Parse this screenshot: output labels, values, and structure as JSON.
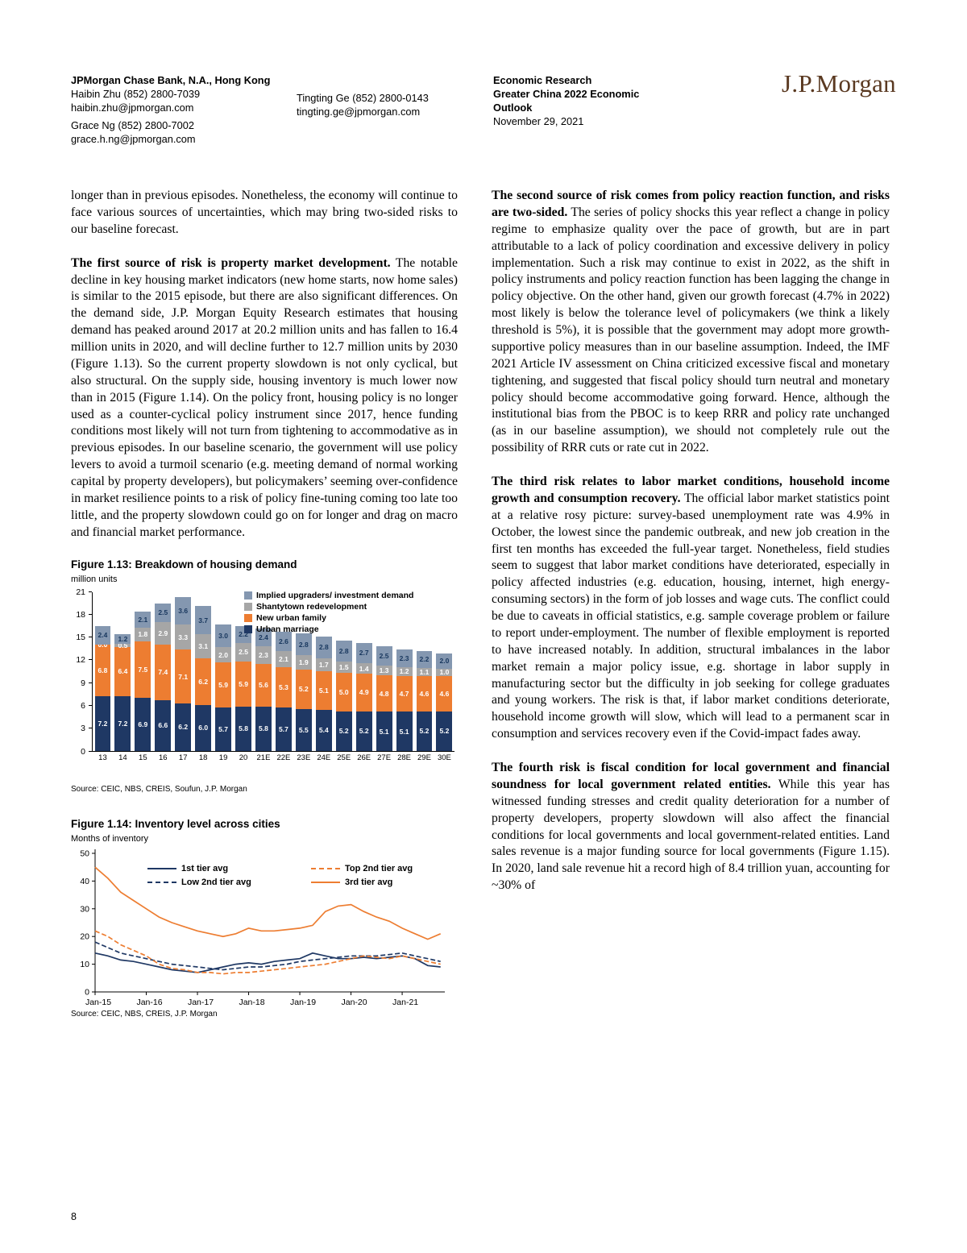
{
  "header": {
    "bank": "JPMorgan Chase Bank, N.A., Hong Kong",
    "contact1_name": "Haibin Zhu (852) 2800-7039",
    "contact1_email": "haibin.zhu@jpmorgan.com",
    "contact2_name": "Grace Ng (852) 2800-7002",
    "contact2_email": "grace.h.ng@jpmorgan.com",
    "contact3_name": "Tingting Ge (852) 2800-0143",
    "contact3_email": "tingting.ge@jpmorgan.com",
    "research_type": "Economic Research",
    "report_title": "Greater China 2022 Economic Outlook",
    "date": "November 29, 2021",
    "logo": "J.P.Morgan"
  },
  "left_column": {
    "para1": "longer than in previous episodes. Nonetheless, the economy will continue to face various sources of uncertainties, which may bring two-sided risks to our baseline forecast.",
    "para2_lead": "The first source of risk is property market development.",
    "para2_text": " The notable decline in key housing market indicators (new home starts, now home sales) is similar to the 2015 episode, but there are also significant differences. On the demand side, J.P. Morgan Equity Research estimates that housing demand has peaked around 2017 at 20.2 million units and has fallen to 16.4 million units in 2020, and will decline further to 12.7 million units by 2030 (Figure 1.13). So the current property slowdown is not only cyclical, but also structural. On the supply side, housing inventory is much lower now than in 2015 (Figure 1.14). On the policy front, housing policy is no longer used as a counter-cyclical policy instrument since 2017, hence funding conditions most likely will not turn from tightening to accommodative as in previous episodes. In our baseline scenario, the government will use policy levers to avoid a turmoil scenario (e.g. meeting demand of normal working capital by property developers), but policymakers’ seeming over-confidence in market resilience points to a risk of policy fine-tuning coming too late too little, and the property slowdown could go on for longer and drag on macro and financial market performance."
  },
  "right_column": {
    "p1_lead": "The second source of risk comes from policy reaction function, and risks are two-sided.",
    "p1_text": " The series of policy shocks this year reflect a change in policy regime to emphasize quality over the pace of growth, but are in part attributable to a lack of policy coordination and excessive delivery in policy implementation. Such a risk may continue to exist in 2022, as the shift in policy instruments and policy reaction function has been lagging the change in policy objective. On the other hand, given our growth forecast (4.7% in 2022) most likely is below the tolerance level of policymakers (we think a likely threshold is 5%), it is possible that the government may adopt more growth-supportive policy measures than in our baseline assumption. Indeed, the IMF 2021 Article IV assessment on China criticized excessive fiscal and monetary tightening, and suggested that fiscal policy should turn neutral and monetary policy should become accommodative going forward. Hence, although the institutional bias from the PBOC is to keep RRR and policy rate unchanged (as in our baseline assumption), we should not completely rule out the possibility of RRR cuts or rate cut in 2022.",
    "p2_lead": "The third risk relates to labor market conditions, household income growth and consumption recovery.",
    "p2_text": " The official labor market statistics point at a relative rosy picture: survey-based unemployment rate was 4.9% in October, the lowest since the pandemic outbreak, and new job creation in the first ten months has exceeded the full-year target. Nonetheless, field studies seem to suggest that labor market conditions have deteriorated, especially in policy affected industries (e.g. education, housing, internet, high energy-consuming sectors) in the form of job losses and wage cuts. The conflict could be due to caveats in official statistics, e.g. sample coverage problem or failure to report under-employment. The number of flexible employment is reported to have increased notably. In addition, structural imbalances in the labor market remain a major policy issue, e.g. shortage in labor supply in manufacturing sector but the difficulty in job seeking for college graduates and young workers. The risk is that, if labor market conditions deteriorate, household income growth will slow, which will lead to a permanent scar in consumption and services recovery even if the Covid-impact fades away.",
    "p3_lead": "The fourth risk is fiscal condition for local government and financial soundness for local government related entities.",
    "p3_text": " While this year has witnessed funding stresses and credit quality deterioration for a number of property developers, property slowdown will also affect the financial conditions for local governments and local government-related entities. Land sales revenue is a major funding source for local governments (Figure 1.15). In 2020, land sale revenue hit a record high of 8.4 trillion yuan, accounting for ~30% of"
  },
  "chart_data": [
    {
      "type": "bar",
      "stacked": true,
      "title": "Figure 1.13: Breakdown of housing demand",
      "ylabel": "million units",
      "ylim": [
        0,
        21
      ],
      "yticks": [
        0,
        3,
        6,
        9,
        12,
        15,
        18,
        21
      ],
      "categories": [
        "13",
        "14",
        "15",
        "16",
        "17",
        "18",
        "19",
        "20",
        "21E",
        "22E",
        "23E",
        "24E",
        "25E",
        "26E",
        "27E",
        "28E",
        "29E",
        "30E"
      ],
      "series": [
        {
          "name": "Urban marriage",
          "color": "#1F3864",
          "values": [
            7.2,
            7.2,
            6.9,
            6.6,
            6.2,
            6.0,
            5.7,
            5.8,
            5.8,
            5.7,
            5.5,
            5.4,
            5.2,
            5.2,
            5.1,
            5.1,
            5.2,
            5.2
          ]
        },
        {
          "name": "New urban family",
          "color": "#ED7D31",
          "values": [
            6.8,
            6.4,
            7.5,
            7.4,
            7.1,
            6.2,
            5.9,
            5.9,
            5.6,
            5.3,
            5.2,
            5.1,
            5.0,
            4.9,
            4.8,
            4.7,
            4.6,
            4.6
          ]
        },
        {
          "name": "Shantytown redevelopment",
          "color": "#A6A6A6",
          "values": [
            0.0,
            0.5,
            1.8,
            2.9,
            3.3,
            3.1,
            2.0,
            2.5,
            2.3,
            2.1,
            1.9,
            1.7,
            1.5,
            1.4,
            1.3,
            1.2,
            1.1,
            1.0
          ]
        },
        {
          "name": "Implied upgraders/ investment demand",
          "color": "#8497B0",
          "values": [
            2.4,
            1.2,
            2.1,
            2.5,
            3.6,
            3.7,
            3.0,
            2.2,
            2.4,
            2.6,
            2.8,
            2.8,
            2.8,
            2.7,
            2.5,
            2.3,
            2.2,
            2.0
          ]
        }
      ],
      "legend_position": "top-right",
      "source": "Source: CEIC, NBS, CREIS, Soufun, J.P. Morgan"
    },
    {
      "type": "line",
      "title": "Figure 1.14: Inventory level across cities",
      "ylabel": "Months of inventory",
      "ylim": [
        0,
        50
      ],
      "yticks": [
        0,
        10,
        20,
        30,
        40,
        50
      ],
      "xmax": 82,
      "x": [
        0,
        3,
        6,
        9,
        12,
        15,
        18,
        21,
        24,
        27,
        30,
        33,
        36,
        39,
        42,
        45,
        48,
        51,
        54,
        57,
        60,
        63,
        66,
        69,
        72,
        75,
        78,
        81
      ],
      "xticks": [
        {
          "pos": 0,
          "label": "Jan-15"
        },
        {
          "pos": 12,
          "label": "Jan-16"
        },
        {
          "pos": 24,
          "label": "Jan-17"
        },
        {
          "pos": 36,
          "label": "Jan-18"
        },
        {
          "pos": 48,
          "label": "Jan-19"
        },
        {
          "pos": 60,
          "label": "Jan-20"
        },
        {
          "pos": 72,
          "label": "Jan-21"
        }
      ],
      "series": [
        {
          "name": "1st tier avg",
          "color": "#1F3864",
          "dashed": false,
          "values": [
            14,
            13,
            11.5,
            11,
            10,
            9,
            8,
            7.5,
            7,
            8,
            9,
            10,
            10.5,
            10,
            11,
            11.5,
            12,
            14,
            13,
            12,
            12,
            12.5,
            12,
            12.5,
            13,
            12,
            9.5,
            9
          ]
        },
        {
          "name": "Low 2nd tier avg",
          "color": "#1F3864",
          "dashed": true,
          "values": [
            18,
            16,
            14,
            13,
            12,
            11,
            10,
            9.5,
            9,
            8.5,
            8,
            8.5,
            9,
            9,
            9.5,
            10,
            11,
            11.5,
            12,
            12.5,
            13,
            13,
            13,
            13.5,
            14,
            13,
            12,
            11
          ]
        },
        {
          "name": "Top 2nd tier avg",
          "color": "#ED7D31",
          "dashed": true,
          "values": [
            22,
            20,
            17,
            15,
            13,
            10,
            8.5,
            8,
            7,
            7,
            6.5,
            7,
            7,
            7.5,
            8,
            8.5,
            9,
            9.5,
            10,
            11,
            12,
            13,
            12.5,
            12,
            13,
            12,
            11,
            10
          ]
        },
        {
          "name": "3rd tier avg",
          "color": "#ED7D31",
          "dashed": false,
          "values": [
            45,
            41,
            36,
            33,
            30,
            27,
            25,
            23.5,
            22,
            21,
            20,
            21,
            23,
            22,
            22,
            22.5,
            23,
            24,
            29,
            31,
            31.5,
            29,
            27,
            25.5,
            23,
            21,
            19,
            21
          ]
        }
      ],
      "legend_order": [
        0,
        2,
        1,
        3
      ],
      "legend_position": "top-center",
      "source": "Source: CEIC, NBS, CREIS, J.P. Morgan"
    }
  ],
  "page_number": "8"
}
